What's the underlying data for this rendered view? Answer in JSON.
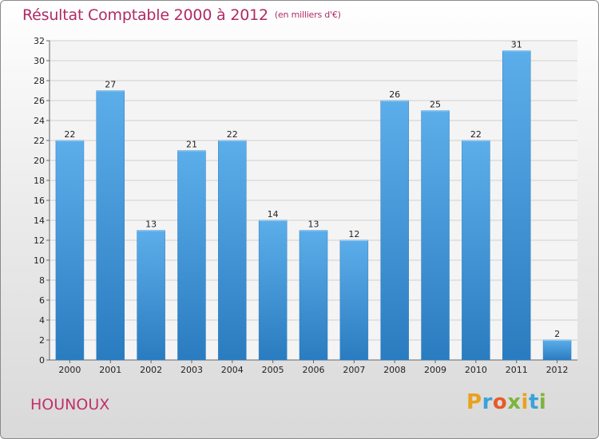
{
  "chart_data": {
    "type": "bar",
    "title": "Résultat Comptable 2000 à 2012",
    "subtitle": "(en milliers d'€)",
    "categories": [
      "2000",
      "2001",
      "2002",
      "2003",
      "2004",
      "2005",
      "2006",
      "2007",
      "2008",
      "2009",
      "2010",
      "2011",
      "2012"
    ],
    "values": [
      22,
      27,
      13,
      21,
      22,
      14,
      13,
      12,
      26,
      25,
      22,
      31,
      2
    ],
    "ylim": [
      0,
      32
    ],
    "yticks": [
      0,
      2,
      4,
      6,
      8,
      10,
      12,
      14,
      16,
      18,
      20,
      22,
      24,
      26,
      28,
      30,
      32
    ],
    "xlabel": "",
    "ylabel": "",
    "grid": true,
    "bar_color": "#3d94d6"
  },
  "place_name": "HOUNOUX",
  "logo_text": "Proxiti",
  "colors": {
    "title": "#b02a65",
    "place": "#c2306a"
  }
}
